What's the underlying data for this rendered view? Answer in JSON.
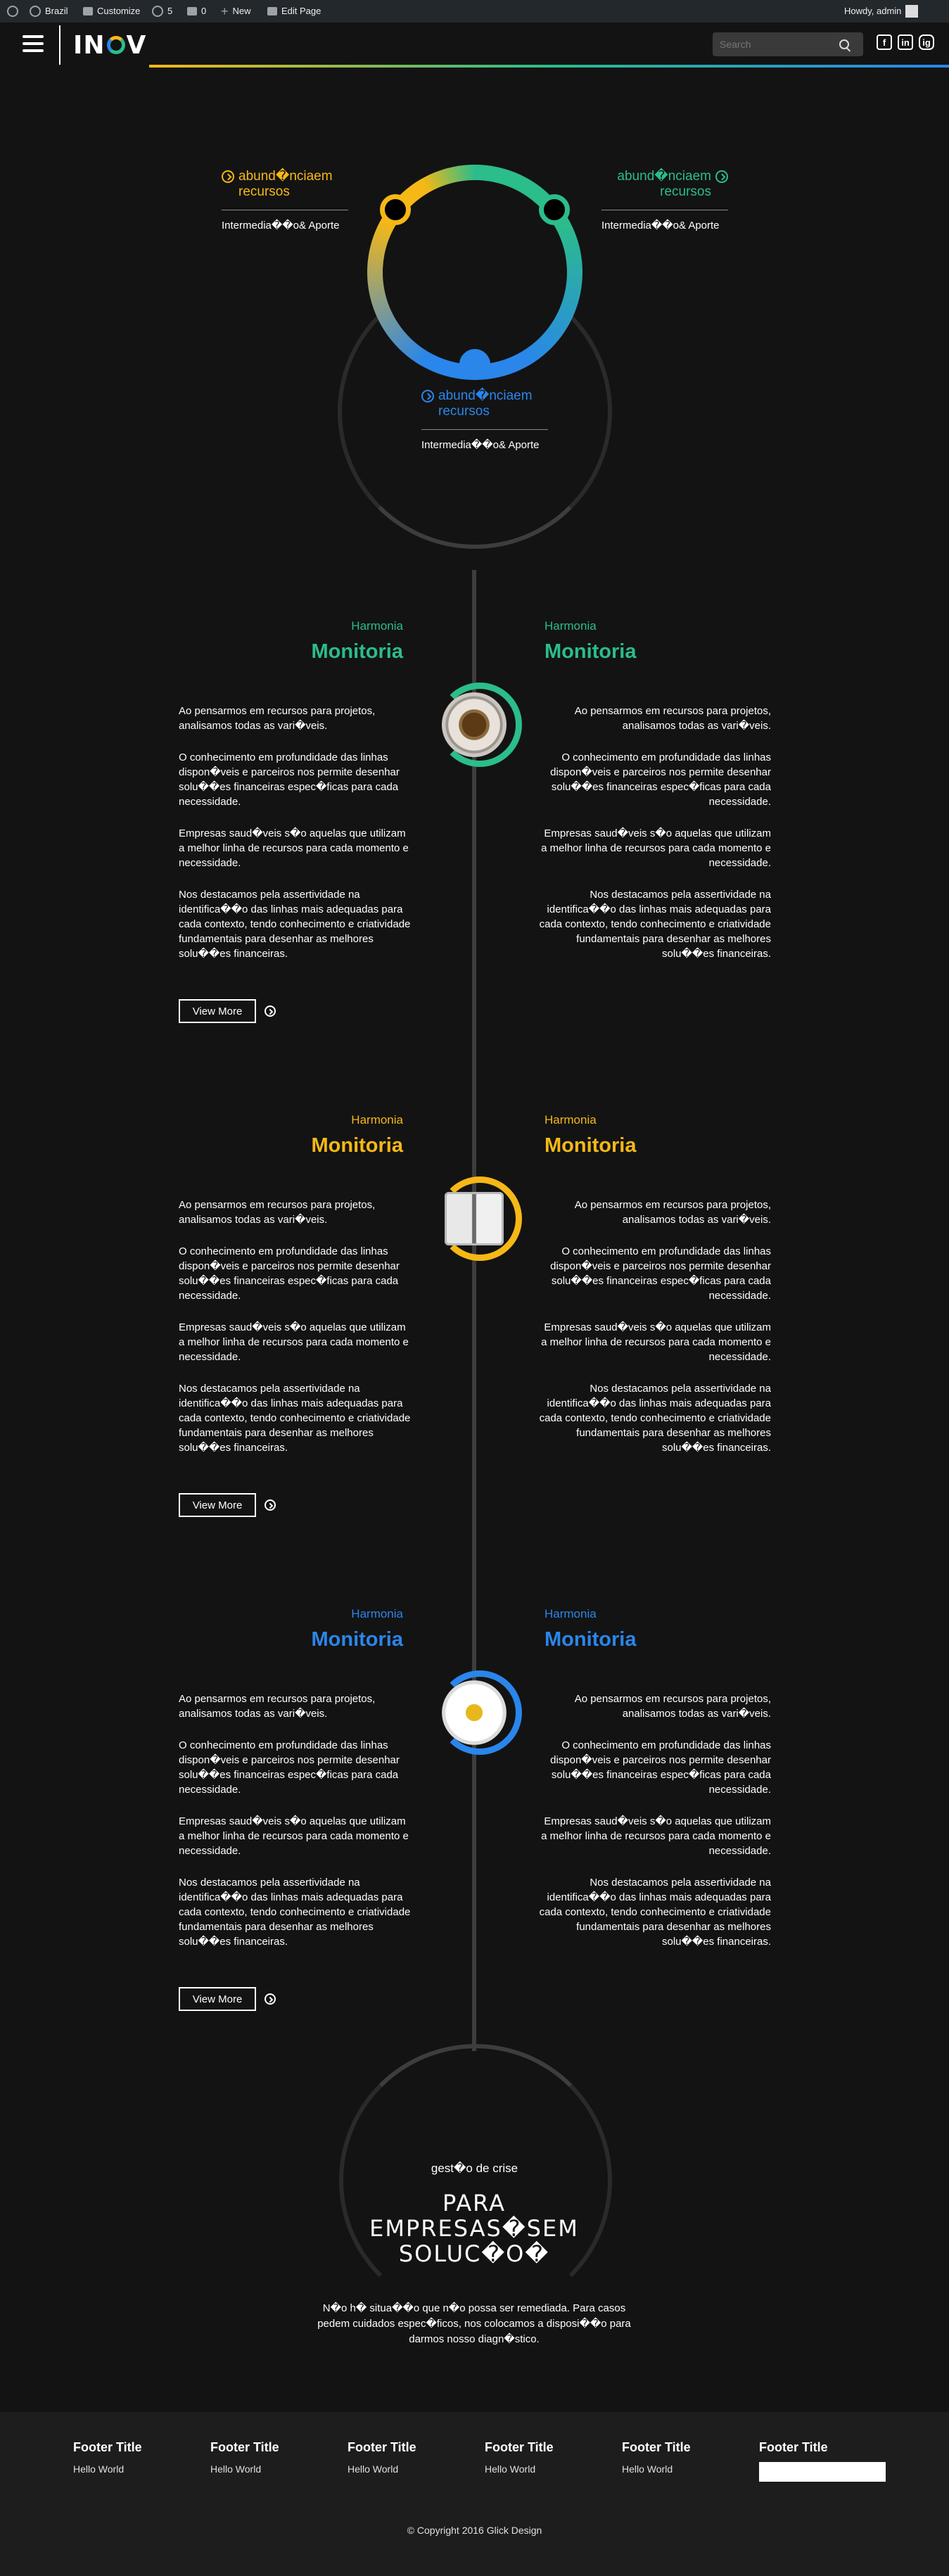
{
  "colors": {
    "green": "#2bbd8a",
    "yellow": "#f5b816",
    "blue": "#2a86ea",
    "background": "#131313",
    "line": "#3d3d3d"
  },
  "adminbar": {
    "site": "Brazil",
    "customize": "Customize",
    "updates": "5",
    "comments": "0",
    "new": "New",
    "edit": "Edit Page",
    "howdy": "Howdy, admin"
  },
  "header": {
    "logo": "IN V",
    "search_placeholder": "Search",
    "social": [
      "f",
      "in",
      "ig"
    ]
  },
  "hero": {
    "items": [
      {
        "title": "abund�nciaem recursos",
        "sub": "Intermedia��o& Aporte",
        "color": "yellow"
      },
      {
        "title": "abund�nciaem recursos",
        "sub": "Intermedia��o& Aporte",
        "color": "green"
      },
      {
        "title": "abund�nciaem recursos",
        "sub": "Intermedia��o& Aporte",
        "color": "blue"
      }
    ]
  },
  "sections": [
    {
      "color": "green",
      "small_left": "Harmonia",
      "big_left": "Monitoria",
      "small_right": "Harmonia",
      "big_right": "Monitoria",
      "image": "coffee-cup",
      "paragraphs": [
        "Ao pensarmos em recursos para projetos, analisamos todas as vari�veis.",
        "O conhecimento em profundidade das linhas dispon�veis e parceiros nos permite desenhar solu��es financeiras espec�ficas para cada necessidade.",
        "Empresas saud�veis s�o aquelas que utilizam a melhor linha de recursos para cada momento e necessidade.",
        "Nos destacamos pela assertividade na identifica��o das linhas mais adequadas para cada contexto, tendo conhecimento e criatividade fundamentais para desenhar as melhores solu��es financeiras."
      ],
      "button": "View More"
    },
    {
      "color": "yellow",
      "small_left": "Harmonia",
      "big_left": "Monitoria",
      "small_right": "Harmonia",
      "big_right": "Monitoria",
      "image": "open-book",
      "paragraphs": [
        "Ao pensarmos em recursos para projetos, analisamos todas as vari�veis.",
        "O conhecimento em profundidade das linhas dispon�veis e parceiros nos permite desenhar solu��es financeiras espec�ficas para cada necessidade.",
        "Empresas saud�veis s�o aquelas que utilizam a melhor linha de recursos para cada momento e necessidade.",
        "Nos destacamos pela assertividade na identifica��o das linhas mais adequadas para cada contexto, tendo conhecimento e criatividade fundamentais para desenhar as melhores solu��es financeiras."
      ],
      "button": "View More"
    },
    {
      "color": "blue",
      "small_left": "Harmonia",
      "big_left": "Monitoria",
      "small_right": "Harmonia",
      "big_right": "Monitoria",
      "image": "daisy-flower",
      "paragraphs": [
        "Ao pensarmos em recursos para projetos, analisamos todas as vari�veis.",
        "O conhecimento em profundidade das linhas dispon�veis e parceiros nos permite desenhar solu��es financeiras espec�ficas para cada necessidade.",
        "Empresas saud�veis s�o aquelas que utilizam a melhor linha de recursos para cada momento e necessidade.",
        "Nos destacamos pela assertividade na identifica��o das linhas mais adequadas para cada contexto, tendo conhecimento e criatividade fundamentais para desenhar as melhores solu��es financeiras."
      ],
      "button": "View More"
    }
  ],
  "crisis": {
    "sub": "gest�o de crise",
    "line1": "PARA",
    "line2": "EMPRESAS�SEM",
    "line3": "SOLUC�O�",
    "text": "N�o h� situa��o que n�o possa ser remediada. Para casos pedem cuidados espec�ficos, nos colocamos a disposi��o para darmos nosso diagn�stico."
  },
  "footer": {
    "columns": [
      {
        "title": "Footer Title",
        "text": "Hello World"
      },
      {
        "title": "Footer Title",
        "text": "Hello World"
      },
      {
        "title": "Footer Title",
        "text": "Hello World"
      },
      {
        "title": "Footer Title",
        "text": "Hello World"
      },
      {
        "title": "Footer Title",
        "text": "Hello World"
      },
      {
        "title": "Footer Title",
        "text": ""
      }
    ],
    "copyright": "© Copyright 2016 Glick Design"
  }
}
